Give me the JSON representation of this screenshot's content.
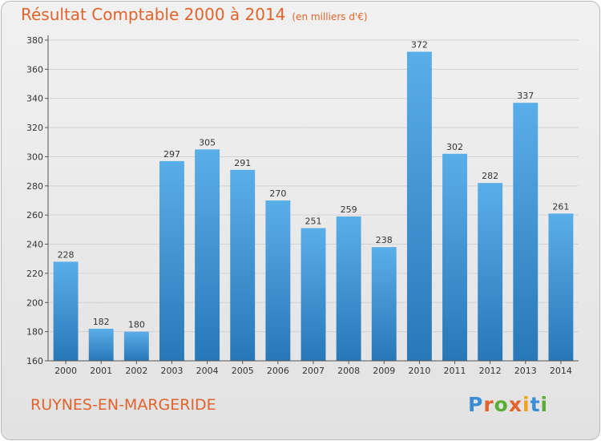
{
  "title": "Résultat Comptable 2000 à 2014",
  "subtitle": "(en milliers d'€)",
  "footer": {
    "commune": "RUYNES-EN-MARGERIDE"
  },
  "logo": {
    "text": "Proxiti",
    "letter_colors": [
      "#3a8ed6",
      "#e2632b",
      "#5aae36",
      "#e2632b",
      "#f0a21a",
      "#3a8ed6",
      "#5aae36"
    ]
  },
  "colors": {
    "bar_top": "#5aaee8",
    "bar_bottom": "#2878b8",
    "label": "#333333",
    "title": "#e2632b",
    "grid": "#d2d2d2"
  },
  "chart_data": {
    "type": "bar",
    "title": "Résultat Comptable 2000 à 2014",
    "subtitle": "(en milliers d'€)",
    "xlabel": "",
    "ylabel": "",
    "categories": [
      "2000",
      "2001",
      "2002",
      "2003",
      "2004",
      "2005",
      "2006",
      "2007",
      "2008",
      "2009",
      "2010",
      "2011",
      "2012",
      "2013",
      "2014"
    ],
    "values": [
      228,
      182,
      180,
      297,
      305,
      291,
      270,
      251,
      259,
      238,
      372,
      302,
      282,
      337,
      261
    ],
    "ylim": [
      160,
      380
    ],
    "yticks": [
      160,
      180,
      200,
      220,
      240,
      260,
      280,
      300,
      320,
      340,
      360,
      380
    ],
    "grid": true,
    "data_labels": true
  }
}
